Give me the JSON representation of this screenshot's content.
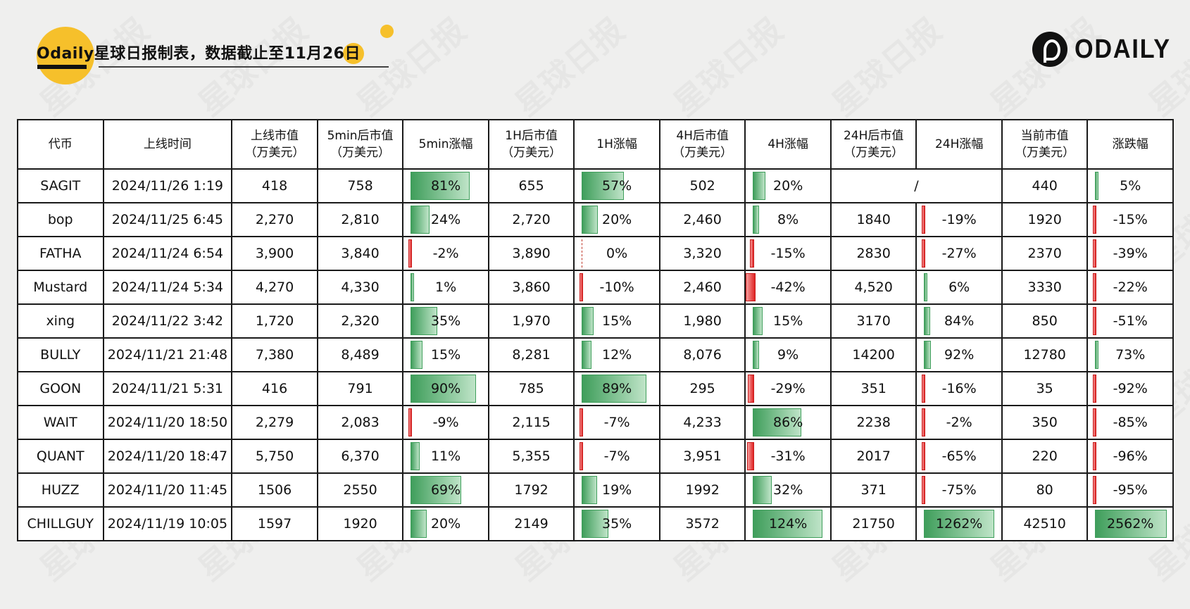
{
  "header": {
    "title": "Odaily星球日报制表，数据截止至11月26日",
    "logo_text": "ODAILY"
  },
  "table": {
    "headers": [
      "代币",
      "上线时间",
      "上线市值\n（万美元）",
      "5min后市值\n（万美元）",
      "5min涨幅",
      "1H后市值\n（万美元）",
      "1H涨幅",
      "4H后市值\n（万美元）",
      "4H涨幅",
      "24H后市值\n（万美元）",
      "24H涨幅",
      "当前市值\n（万美元）",
      "涨跌幅"
    ],
    "rows": [
      {
        "token": "SAGIT",
        "time": "2024/11/26 1:19",
        "mc0": "418",
        "mc5m": "758",
        "p5m": "81%",
        "v5m": 81,
        "mc1h": "655",
        "p1h": "57%",
        "v1h": 57,
        "mc4h": "502",
        "p4h": "20%",
        "v4h": 20,
        "mc24h": "/",
        "p24h": null,
        "v24h": null,
        "mcNow": "440",
        "pNow": "5%",
        "vNow": 5
      },
      {
        "token": "bop",
        "time": "2024/11/25 6:45",
        "mc0": "2,270",
        "mc5m": "2,810",
        "p5m": "24%",
        "v5m": 24,
        "mc1h": "2,720",
        "p1h": "20%",
        "v1h": 20,
        "mc4h": "2,460",
        "p4h": "8%",
        "v4h": 8,
        "mc24h": "1840",
        "p24h": "-19%",
        "v24h": -19,
        "mcNow": "1920",
        "pNow": "-15%",
        "vNow": -15
      },
      {
        "token": "FATHA",
        "time": "2024/11/24 6:54",
        "mc0": "3,900",
        "mc5m": "3,840",
        "p5m": "-2%",
        "v5m": -2,
        "mc1h": "3,890",
        "p1h": "0%",
        "v1h": 0,
        "mc4h": "3,320",
        "p4h": "-15%",
        "v4h": -15,
        "mc24h": "2830",
        "p24h": "-27%",
        "v24h": -27,
        "mcNow": "2370",
        "pNow": "-39%",
        "vNow": -39
      },
      {
        "token": "Mustard",
        "time": "2024/11/24 5:34",
        "mc0": "4,270",
        "mc5m": "4,330",
        "p5m": "1%",
        "v5m": 1,
        "mc1h": "3,860",
        "p1h": "-10%",
        "v1h": -10,
        "mc4h": "2,460",
        "p4h": "-42%",
        "v4h": -42,
        "mc24h": "4,520",
        "p24h": "6%",
        "v24h": 6,
        "mcNow": "3330",
        "pNow": "-22%",
        "vNow": -22
      },
      {
        "token": "xing",
        "time": "2024/11/22 3:42",
        "mc0": "1,720",
        "mc5m": "2,320",
        "p5m": "35%",
        "v5m": 35,
        "mc1h": "1,970",
        "p1h": "15%",
        "v1h": 15,
        "mc4h": "1,980",
        "p4h": "15%",
        "v4h": 15,
        "mc24h": "3170",
        "p24h": "84%",
        "v24h": 84,
        "mcNow": "850",
        "pNow": "-51%",
        "vNow": -51
      },
      {
        "token": "BULLY",
        "time": "2024/11/21 21:48",
        "mc0": "7,380",
        "mc5m": "8,489",
        "p5m": "15%",
        "v5m": 15,
        "mc1h": "8,281",
        "p1h": "12%",
        "v1h": 12,
        "mc4h": "8,076",
        "p4h": "9%",
        "v4h": 9,
        "mc24h": "14200",
        "p24h": "92%",
        "v24h": 92,
        "mcNow": "12780",
        "pNow": "73%",
        "vNow": 73
      },
      {
        "token": "GOON",
        "time": "2024/11/21 5:31",
        "mc0": "416",
        "mc5m": "791",
        "p5m": "90%",
        "v5m": 90,
        "mc1h": "785",
        "p1h": "89%",
        "v1h": 89,
        "mc4h": "295",
        "p4h": "-29%",
        "v4h": -29,
        "mc24h": "351",
        "p24h": "-16%",
        "v24h": -16,
        "mcNow": "35",
        "pNow": "-92%",
        "vNow": -92
      },
      {
        "token": "WAIT",
        "time": "2024/11/20 18:50",
        "mc0": "2,279",
        "mc5m": "2,083",
        "p5m": "-9%",
        "v5m": -9,
        "mc1h": "2,115",
        "p1h": "-7%",
        "v1h": -7,
        "mc4h": "4,233",
        "p4h": "86%",
        "v4h": 86,
        "mc24h": "2238",
        "p24h": "-2%",
        "v24h": -2,
        "mcNow": "350",
        "pNow": "-85%",
        "vNow": -85
      },
      {
        "token": "QUANT",
        "time": "2024/11/20 18:47",
        "mc0": "5,750",
        "mc5m": "6,370",
        "p5m": "11%",
        "v5m": 11,
        "mc1h": "5,355",
        "p1h": "-7%",
        "v1h": -7,
        "mc4h": "3,951",
        "p4h": "-31%",
        "v4h": -31,
        "mc24h": "2017",
        "p24h": "-65%",
        "v24h": -65,
        "mcNow": "220",
        "pNow": "-96%",
        "vNow": -96
      },
      {
        "token": "HUZZ",
        "time": "2024/11/20 11:45",
        "mc0": "1506",
        "mc5m": "2550",
        "p5m": "69%",
        "v5m": 69,
        "mc1h": "1792",
        "p1h": "19%",
        "v1h": 19,
        "mc4h": "1992",
        "p4h": "32%",
        "v4h": 32,
        "mc24h": "371",
        "p24h": "-75%",
        "v24h": -75,
        "mcNow": "80",
        "pNow": "-95%",
        "vNow": -95
      },
      {
        "token": "CHILLGUY",
        "time": "2024/11/19 10:05",
        "mc0": "1597",
        "mc5m": "1920",
        "p5m": "20%",
        "v5m": 20,
        "mc1h": "2149",
        "p1h": "35%",
        "v1h": 35,
        "mc4h": "3572",
        "p4h": "124%",
        "v4h": 124,
        "mc24h": "21750",
        "p24h": "1262%",
        "v24h": 1262,
        "mcNow": "42510",
        "pNow": "2562%",
        "vNow": 2562
      }
    ]
  },
  "colors": {
    "positive_bar": "#3f9e5b",
    "negative_bar": "#e02424",
    "accent_yellow": "#f6c02b"
  }
}
